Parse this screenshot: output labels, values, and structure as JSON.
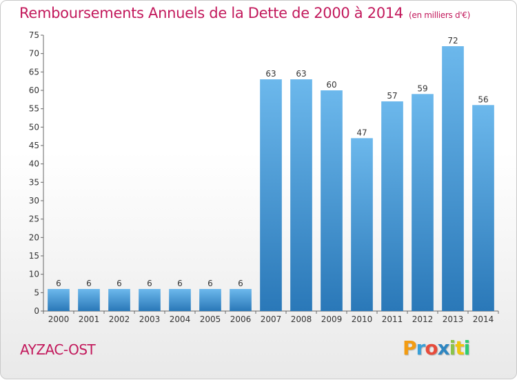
{
  "chart_data": {
    "type": "bar",
    "title": "Remboursements Annuels de la Dette de 2000 à 2014",
    "subtitle": "(en milliers d'€)",
    "categories": [
      "2000",
      "2001",
      "2002",
      "2003",
      "2004",
      "2005",
      "2006",
      "2007",
      "2008",
      "2009",
      "2010",
      "2011",
      "2012",
      "2013",
      "2014"
    ],
    "values": [
      6,
      6,
      6,
      6,
      6,
      6,
      6,
      63,
      63,
      60,
      47,
      57,
      59,
      72,
      56
    ],
    "ylim": [
      0,
      75
    ],
    "yticks": [
      0,
      5,
      10,
      15,
      20,
      25,
      30,
      35,
      40,
      45,
      50,
      55,
      60,
      65,
      70,
      75
    ],
    "grid": false,
    "colors": {
      "bar_light": "#6cb8ec",
      "bar_dark": "#2a78b8",
      "title": "#c2185b"
    }
  },
  "commune": "AYZAC-OST",
  "logo": {
    "letters": [
      "P",
      "r",
      "o",
      "x",
      "i",
      "t",
      "i"
    ],
    "colors": [
      "#f39c12",
      "#3aa0d8",
      "#e74c3c",
      "#2e86c1",
      "#8bc34a",
      "#f1c40f",
      "#2ecc71"
    ]
  }
}
